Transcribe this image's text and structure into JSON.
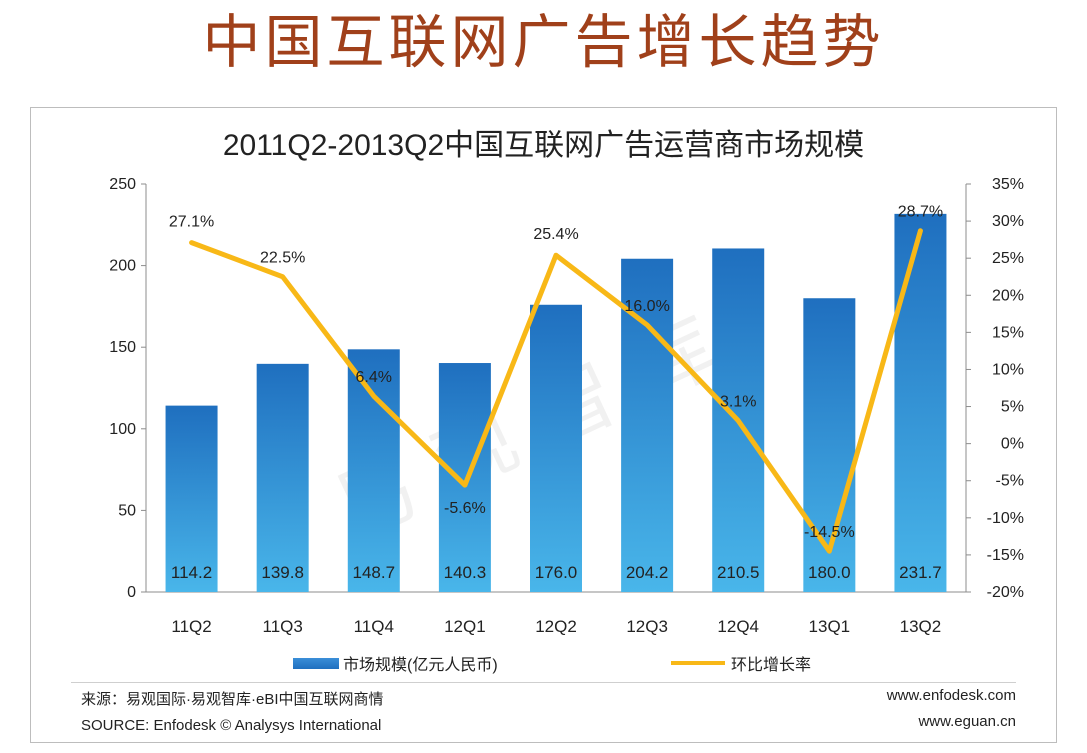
{
  "slide_title": "中国互联网广告增长趋势",
  "watermark": "易观智库",
  "chart_data": {
    "type": "bar",
    "title": "2011Q2-2013Q2中国互联网广告运营商市场规模",
    "categories": [
      "11Q2",
      "11Q3",
      "11Q4",
      "12Q1",
      "12Q2",
      "12Q3",
      "12Q4",
      "13Q1",
      "13Q2"
    ],
    "series": [
      {
        "name": "市场规模(亿元人民币)",
        "type": "bar",
        "axis": "left",
        "color": "#2f86d3",
        "values": [
          114.2,
          139.8,
          148.7,
          140.3,
          176.0,
          204.2,
          210.5,
          180.0,
          231.7
        ],
        "labels": [
          "114.2",
          "139.8",
          "148.7",
          "140.3",
          "176.0",
          "204.2",
          "210.5",
          "180.0",
          "231.7"
        ]
      },
      {
        "name": "环比增长率",
        "type": "line",
        "axis": "right",
        "color": "#f8b817",
        "values": [
          27.1,
          22.5,
          6.4,
          -5.6,
          25.4,
          16.0,
          3.1,
          -14.5,
          28.7
        ],
        "labels": [
          "27.1%",
          "22.5%",
          "6.4%",
          "-5.6%",
          "25.4%",
          "16.0%",
          "3.1%",
          "-14.5%",
          "28.7%"
        ]
      }
    ],
    "y_left": {
      "min": 0,
      "max": 250,
      "ticks": [
        0,
        50,
        100,
        150,
        200,
        250
      ],
      "tick_labels": [
        "0",
        "50",
        "100",
        "150",
        "200",
        "250"
      ]
    },
    "y_right": {
      "min": -20,
      "max": 35,
      "ticks": [
        -20,
        -15,
        -10,
        -5,
        0,
        5,
        10,
        15,
        20,
        25,
        30,
        35
      ],
      "tick_labels": [
        "-20%",
        "-15%",
        "-10%",
        "-5%",
        "0%",
        "5%",
        "10%",
        "15%",
        "20%",
        "25%",
        "30%",
        "35%"
      ]
    },
    "legend_position": "bottom",
    "grid": false
  },
  "footer": {
    "source_cn": "来源：易观国际·易观智库·eBI中国互联网商情",
    "source_en": "SOURCE: Enfodesk © Analysys International",
    "url1": "www.enfodesk.com",
    "url2": "www.eguan.cn"
  },
  "colors": {
    "title": "#a0401a",
    "bar": "#2f86d3",
    "line": "#f8b817"
  }
}
